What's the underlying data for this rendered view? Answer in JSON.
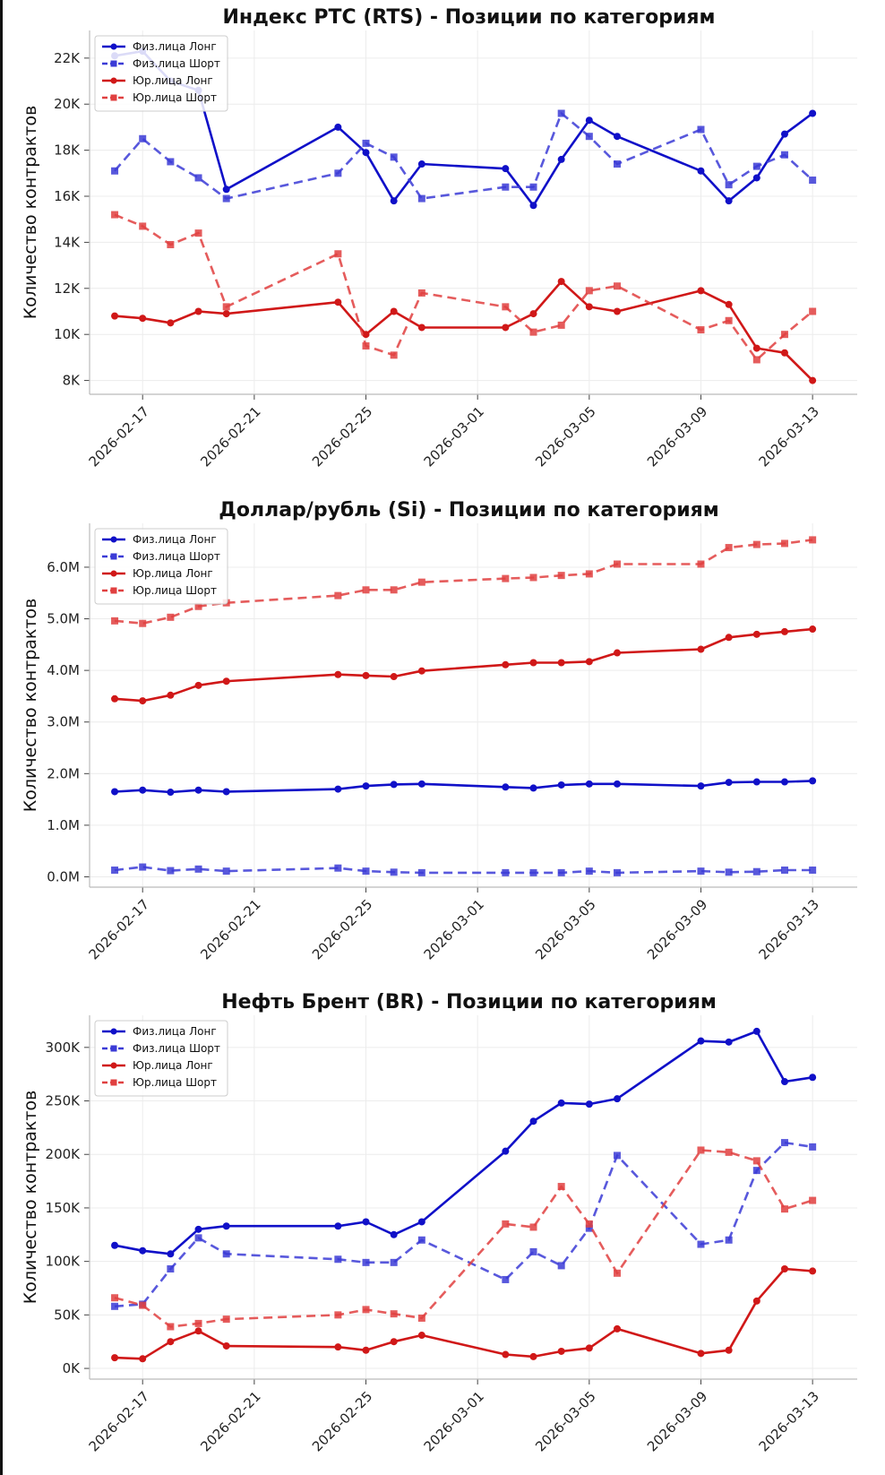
{
  "page": {
    "background": "#ffffff"
  },
  "colors": {
    "phys": "#1010c8",
    "phys_short": "#3b3bd6",
    "jur": "#d01818",
    "jur_short": "#e04040",
    "grid": "#ececec",
    "axis": "#bbbbbb"
  },
  "chart_data": [
    {
      "type": "line",
      "title": "Индекс РТС (RTS) - Позиции по категориям",
      "xlabel": "",
      "ylabel": "Количество контрактов",
      "x": [
        "2026-02-16",
        "2026-02-17",
        "2026-02-18",
        "2026-02-19",
        "2026-02-20",
        "2026-02-24",
        "2026-02-25",
        "2026-02-26",
        "2026-02-27",
        "2026-03-02",
        "2026-03-03",
        "2026-03-04",
        "2026-03-05",
        "2026-03-06",
        "2026-03-09",
        "2026-03-10",
        "2026-03-11",
        "2026-03-12",
        "2026-03-13"
      ],
      "xticks": [
        "2026-02-17",
        "2026-02-21",
        "2026-02-25",
        "2026-03-01",
        "2026-03-05",
        "2026-03-09",
        "2026-03-13"
      ],
      "yticks": [
        8000,
        10000,
        12000,
        14000,
        16000,
        18000,
        20000,
        22000
      ],
      "ytick_labels": [
        "8K",
        "10K",
        "12K",
        "14K",
        "16K",
        "18K",
        "20K",
        "22K"
      ],
      "ylim": [
        7400,
        23200
      ],
      "grid": true,
      "legend_position": "top-left",
      "series": [
        {
          "name": "Физ.лица Лонг",
          "style": "solid",
          "marker": "circle",
          "color": "#1010c8",
          "values": [
            22100,
            22300,
            21000,
            20600,
            16300,
            19000,
            17900,
            15800,
            17400,
            17200,
            15600,
            17600,
            19300,
            18600,
            17100,
            15800,
            16800,
            18700,
            19600
          ]
        },
        {
          "name": "Физ.лица Шорт",
          "style": "dashed",
          "marker": "square",
          "color": "#3b3bd6",
          "values": [
            17100,
            18500,
            17500,
            16800,
            15900,
            17000,
            18300,
            17700,
            15900,
            16400,
            16400,
            19600,
            18600,
            17400,
            18900,
            16500,
            17300,
            17800,
            16700
          ]
        },
        {
          "name": "Юр.лица Лонг",
          "style": "solid",
          "marker": "circle",
          "color": "#d01818",
          "values": [
            10800,
            10700,
            10500,
            11000,
            10900,
            11400,
            10000,
            11000,
            10300,
            10300,
            10900,
            12300,
            11200,
            11000,
            11900,
            11300,
            9400,
            9200,
            8000
          ]
        },
        {
          "name": "Юр.лица Шорт",
          "style": "dashed",
          "marker": "square",
          "color": "#e04040",
          "values": [
            15200,
            14700,
            13900,
            14400,
            11200,
            13500,
            9500,
            9100,
            11800,
            11200,
            10100,
            10400,
            11900,
            12100,
            10200,
            10600,
            8900,
            10000,
            11000
          ]
        }
      ]
    },
    {
      "type": "line",
      "title": "Доллар/рубль (Si) - Позиции по категориям",
      "xlabel": "",
      "ylabel": "Количество контрактов",
      "x": [
        "2026-02-16",
        "2026-02-17",
        "2026-02-18",
        "2026-02-19",
        "2026-02-20",
        "2026-02-24",
        "2026-02-25",
        "2026-02-26",
        "2026-02-27",
        "2026-03-02",
        "2026-03-03",
        "2026-03-04",
        "2026-03-05",
        "2026-03-06",
        "2026-03-09",
        "2026-03-10",
        "2026-03-11",
        "2026-03-12",
        "2026-03-13"
      ],
      "xticks": [
        "2026-02-17",
        "2026-02-21",
        "2026-02-25",
        "2026-03-01",
        "2026-03-05",
        "2026-03-09",
        "2026-03-13"
      ],
      "yticks": [
        0,
        1000000,
        2000000,
        3000000,
        4000000,
        5000000,
        6000000
      ],
      "ytick_labels": [
        "0.0M",
        "1.0M",
        "2.0M",
        "3.0M",
        "4.0M",
        "5.0M",
        "6.0M"
      ],
      "ylim": [
        -200000,
        6850000
      ],
      "grid": true,
      "legend_position": "top-left",
      "series": [
        {
          "name": "Физ.лица Лонг",
          "style": "solid",
          "marker": "circle",
          "color": "#1010c8",
          "values": [
            1650000,
            1680000,
            1640000,
            1680000,
            1650000,
            1700000,
            1760000,
            1790000,
            1800000,
            1740000,
            1720000,
            1780000,
            1800000,
            1800000,
            1760000,
            1830000,
            1840000,
            1840000,
            1860000
          ]
        },
        {
          "name": "Физ.лица Шорт",
          "style": "dashed",
          "marker": "square",
          "color": "#3b3bd6",
          "values": [
            130000,
            190000,
            120000,
            150000,
            110000,
            170000,
            110000,
            90000,
            80000,
            80000,
            80000,
            80000,
            110000,
            80000,
            110000,
            90000,
            100000,
            130000,
            130000
          ]
        },
        {
          "name": "Юр.лица Лонг",
          "style": "solid",
          "marker": "circle",
          "color": "#d01818",
          "values": [
            3450000,
            3410000,
            3520000,
            3710000,
            3790000,
            3920000,
            3900000,
            3880000,
            3990000,
            4110000,
            4150000,
            4150000,
            4170000,
            4340000,
            4410000,
            4640000,
            4700000,
            4750000,
            4800000
          ]
        },
        {
          "name": "Юр.лица Шорт",
          "style": "dashed",
          "marker": "square",
          "color": "#e04040",
          "values": [
            4960000,
            4910000,
            5030000,
            5240000,
            5310000,
            5450000,
            5560000,
            5560000,
            5710000,
            5780000,
            5800000,
            5840000,
            5870000,
            6060000,
            6060000,
            6380000,
            6440000,
            6460000,
            6530000
          ]
        }
      ]
    },
    {
      "type": "line",
      "title": "Нефть Брент (BR) - Позиции по категориям",
      "xlabel": "",
      "ylabel": "Количество контрактов",
      "x": [
        "2026-02-16",
        "2026-02-17",
        "2026-02-18",
        "2026-02-19",
        "2026-02-20",
        "2026-02-24",
        "2026-02-25",
        "2026-02-26",
        "2026-02-27",
        "2026-03-02",
        "2026-03-03",
        "2026-03-04",
        "2026-03-05",
        "2026-03-06",
        "2026-03-09",
        "2026-03-10",
        "2026-03-11",
        "2026-03-12",
        "2026-03-13"
      ],
      "xticks": [
        "2026-02-17",
        "2026-02-21",
        "2026-02-25",
        "2026-03-01",
        "2026-03-05",
        "2026-03-09",
        "2026-03-13"
      ],
      "yticks": [
        0,
        50000,
        100000,
        150000,
        200000,
        250000,
        300000
      ],
      "ytick_labels": [
        "0K",
        "50K",
        "100K",
        "150K",
        "200K",
        "250K",
        "300K"
      ],
      "ylim": [
        -10000,
        330000
      ],
      "grid": true,
      "legend_position": "top-left",
      "series": [
        {
          "name": "Физ.лица Лонг",
          "style": "solid",
          "marker": "circle",
          "color": "#1010c8",
          "values": [
            115000,
            110000,
            107000,
            130000,
            133000,
            133000,
            137000,
            125000,
            137000,
            203000,
            231000,
            248000,
            247000,
            252000,
            306000,
            305000,
            315000,
            268000,
            272000
          ]
        },
        {
          "name": "Физ.лица Шорт",
          "style": "dashed",
          "marker": "square",
          "color": "#3b3bd6",
          "values": [
            58000,
            60000,
            93000,
            122000,
            107000,
            102000,
            99000,
            99000,
            120000,
            83000,
            109000,
            96000,
            131000,
            199000,
            116000,
            120000,
            185000,
            211000,
            207000
          ]
        },
        {
          "name": "Юр.лица Лонг",
          "style": "solid",
          "marker": "circle",
          "color": "#d01818",
          "values": [
            10000,
            9000,
            25000,
            35000,
            21000,
            20000,
            17000,
            25000,
            31000,
            13000,
            11000,
            16000,
            19000,
            37000,
            14000,
            17000,
            63000,
            93000,
            91000
          ]
        },
        {
          "name": "Юр.лица Шорт",
          "style": "dashed",
          "marker": "square",
          "color": "#e04040",
          "values": [
            66000,
            59000,
            39000,
            42000,
            46000,
            50000,
            55000,
            51000,
            47000,
            135000,
            132000,
            170000,
            135000,
            89000,
            204000,
            202000,
            194000,
            149000,
            157000
          ]
        }
      ]
    }
  ]
}
